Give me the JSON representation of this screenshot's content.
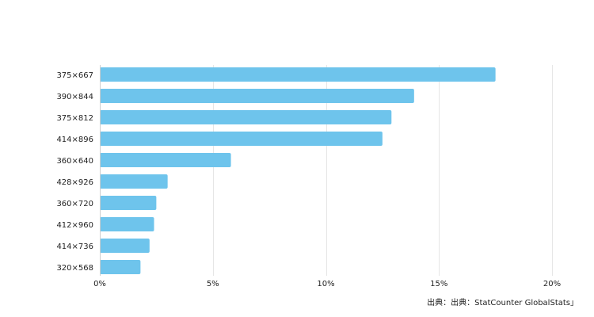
{
  "chart_data": {
    "type": "bar",
    "orientation": "horizontal",
    "categories": [
      "375×667",
      "390×844",
      "375×812",
      "414×896",
      "360×640",
      "428×926",
      "360×720",
      "412×960",
      "414×736",
      "320×568"
    ],
    "values": [
      17.5,
      13.9,
      12.9,
      12.5,
      5.8,
      3.0,
      2.5,
      2.4,
      2.2,
      1.8
    ],
    "xlim": [
      0,
      20
    ],
    "xticks": [
      0,
      5,
      10,
      15,
      20
    ],
    "xtick_labels": [
      "0%",
      "5%",
      "10%",
      "15%",
      "20%"
    ],
    "grid": true,
    "bar_color": "#6ec4ec",
    "grid_color": "#e6e6e6"
  },
  "source": "出典：出典：StatCounter GlobalStats」"
}
